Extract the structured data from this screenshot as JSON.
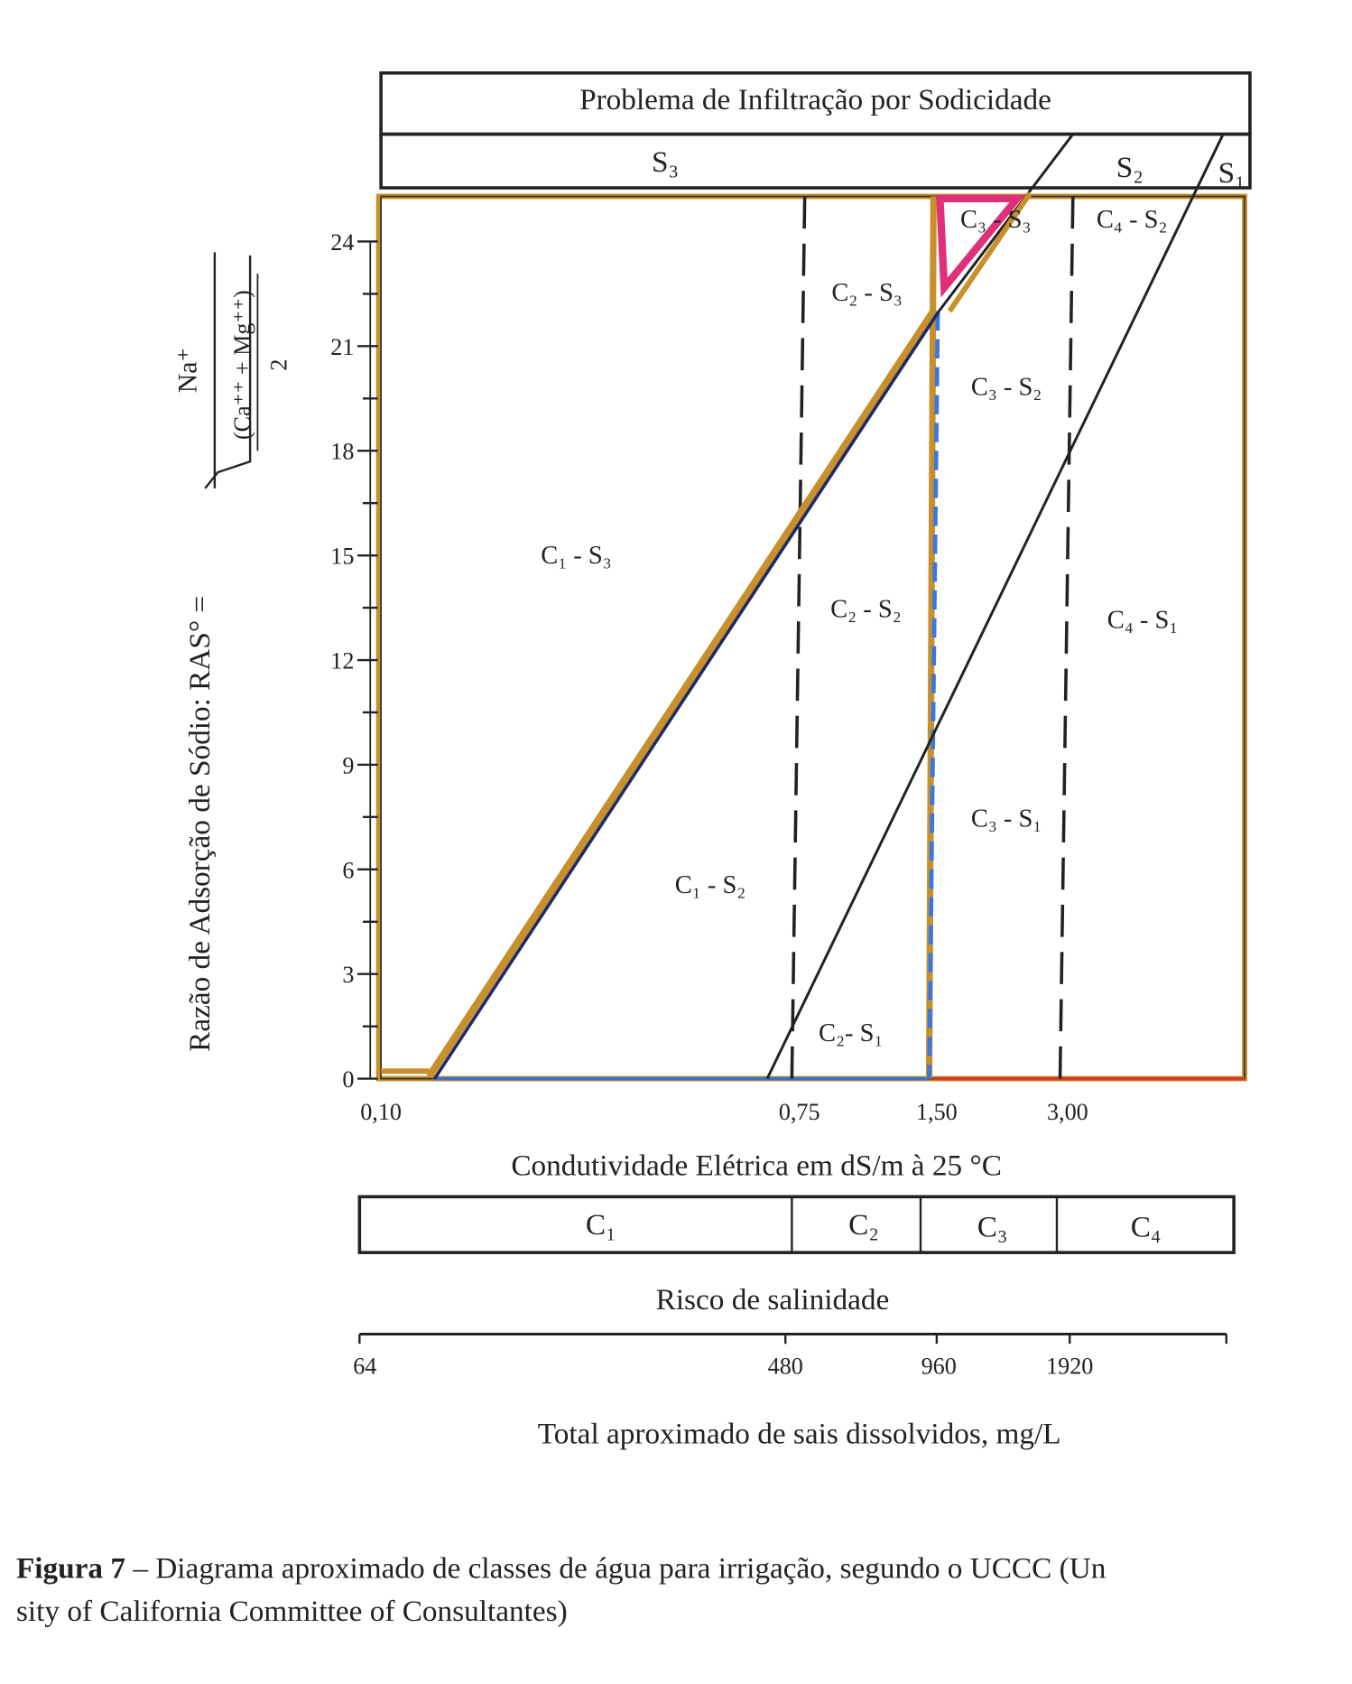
{
  "header": {
    "title": "Problema de Infiltração por Sodicidade",
    "sodicity_classes": [
      "S₃",
      "S₂",
      "S₁"
    ]
  },
  "y_axis": {
    "label": "Razão de Adsorção de Sódio:  RAS° =",
    "numerator": "Na⁺",
    "denominator": "(Ca⁺⁺ + Mg⁺⁺)",
    "divisor": "2",
    "ticks": [
      "0",
      "3",
      "6",
      "9",
      "12",
      "15",
      "18",
      "21",
      "24"
    ]
  },
  "regions": [
    "C₁ - S₃",
    "C₂ - S₃",
    "C₃ - S₃",
    "C₄ - S₂",
    "C₃ - S₂",
    "C₂ - S₂",
    "C₄ - S₁",
    "C₃ - S₁",
    "C₁ - S₂",
    "C₂- S₁"
  ],
  "x_axis": {
    "ticks": [
      "0,10",
      "0,75",
      "1,50",
      "3,00"
    ],
    "title": "Condutividade Elétrica em dS/m   à 25 °C"
  },
  "salinity": {
    "classes": [
      "C₁",
      "C₂",
      "C₃",
      "C₄"
    ],
    "title": "Risco de salinidade"
  },
  "tds": {
    "ticks": [
      "64",
      "480",
      "960",
      "1920"
    ],
    "title": "Total aproximado de sais dissolvidos, mg/L"
  },
  "caption": {
    "label": "Figura 7",
    "text": " – Diagrama aproximado de classes de água para irrigação, segundo o UCCC (Un",
    "text2": "sity of California Committee of Consultantes)"
  }
}
